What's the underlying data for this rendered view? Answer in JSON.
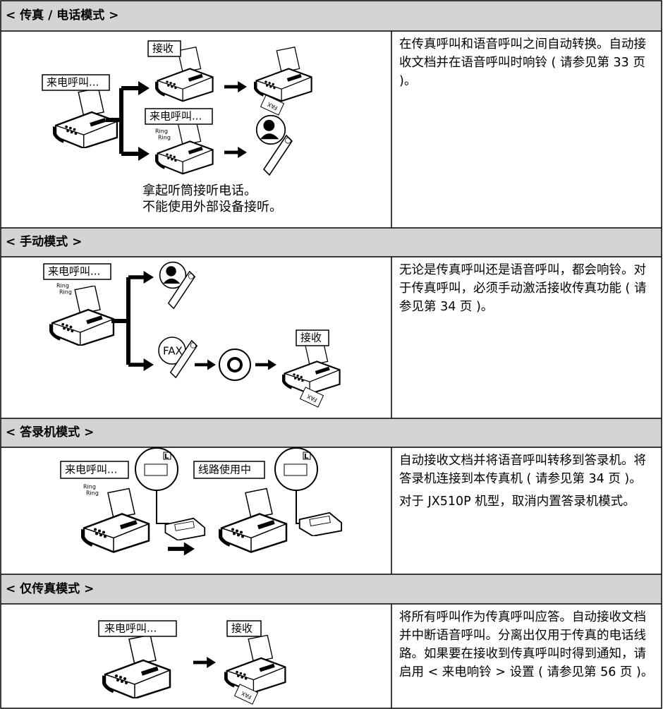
{
  "sections": [
    {
      "title": "< 传真 / 电话模式 >",
      "labels": [
        "来电呼叫...",
        "接收",
        "来电呼叫...",
        "Ring",
        "Ring",
        "FAX",
        "拿起听筒接听电话。",
        "不能使用外部设备接听。"
      ],
      "description": [
        "在传真呼叫和语音呼叫之间自动转换。自动接收文档并在语音呼叫时响铃 ( 请参见第 33 页 )。"
      ]
    },
    {
      "title": "< 手动模式 >",
      "labels": [
        "来电呼叫...",
        "Ring",
        "Ring",
        "FAX",
        "接收",
        "FAX"
      ],
      "description": [
        "无论是传真呼叫还是语音呼叫，都会响铃。对于传真呼叫，必须手动激活接收传真功能 ( 请参见第 34 页 )。"
      ]
    },
    {
      "title": "< 答录机模式 >",
      "labels": [
        "来电呼叫...",
        "Ring",
        "Ring",
        "L",
        "线路使用中",
        "L"
      ],
      "description": [
        "自动接收文档并将语音呼叫转移到答录机。将答录机连接到本传真机 ( 请参见第 34 页 )。",
        "对于 JX510P 机型，取消内置答录机模式。"
      ]
    },
    {
      "title": "< 仅传真模式 >",
      "labels": [
        "来电呼叫...",
        "接收",
        "FAX"
      ],
      "description": [
        "将所有呼叫作为传真呼叫应答。自动接收文档并中断语音呼叫。分离出仅用于传真的电话线路。如果要在接收到传真呼叫时得到通知，请启用 < 来电响铃 > 设置 ( 请参见第 56 页 )。"
      ]
    }
  ]
}
